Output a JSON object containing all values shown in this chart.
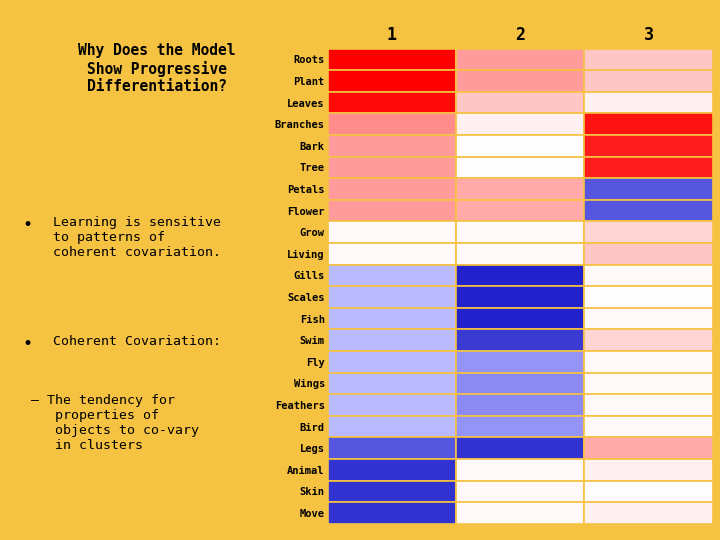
{
  "rows": [
    "Roots",
    "Plant",
    "Leaves",
    "Branches",
    "Bark",
    "Tree",
    "Petals",
    "Flower",
    "Grow",
    "Living",
    "Gills",
    "Scales",
    "Fish",
    "Swim",
    "Fly",
    "Wings",
    "Feathers",
    "Bird",
    "Legs",
    "Animal",
    "Skin",
    "Move"
  ],
  "cols": [
    "1",
    "2",
    "3"
  ],
  "matrix": [
    [
      1.0,
      0.35,
      0.2
    ],
    [
      1.0,
      0.35,
      0.2
    ],
    [
      0.95,
      0.2,
      0.05
    ],
    [
      0.4,
      0.05,
      0.9
    ],
    [
      0.35,
      0.0,
      0.85
    ],
    [
      0.35,
      0.0,
      0.85
    ],
    [
      0.35,
      0.3,
      -0.7
    ],
    [
      0.35,
      0.3,
      -0.7
    ],
    [
      0.02,
      0.02,
      0.15
    ],
    [
      0.02,
      0.02,
      0.2
    ],
    [
      -0.25,
      -1.0,
      0.02
    ],
    [
      -0.25,
      -1.0,
      0.0
    ],
    [
      -0.25,
      -1.0,
      0.02
    ],
    [
      -0.25,
      -0.85,
      0.15
    ],
    [
      -0.25,
      -0.4,
      0.02
    ],
    [
      -0.25,
      -0.45,
      0.02
    ],
    [
      -0.25,
      -0.45,
      0.02
    ],
    [
      -0.25,
      -0.4,
      0.02
    ],
    [
      -0.7,
      -0.9,
      0.3
    ],
    [
      -0.9,
      0.02,
      0.05
    ],
    [
      -0.9,
      0.02,
      0.0
    ],
    [
      -0.9,
      0.02,
      0.05
    ]
  ],
  "background_color": "#F5C242",
  "left_bg": "#FFFFFF",
  "col_label_fontsize": 12,
  "row_label_fontsize": 7.5,
  "title_fontsize": 10.5,
  "bullet_fontsize": 9.5
}
